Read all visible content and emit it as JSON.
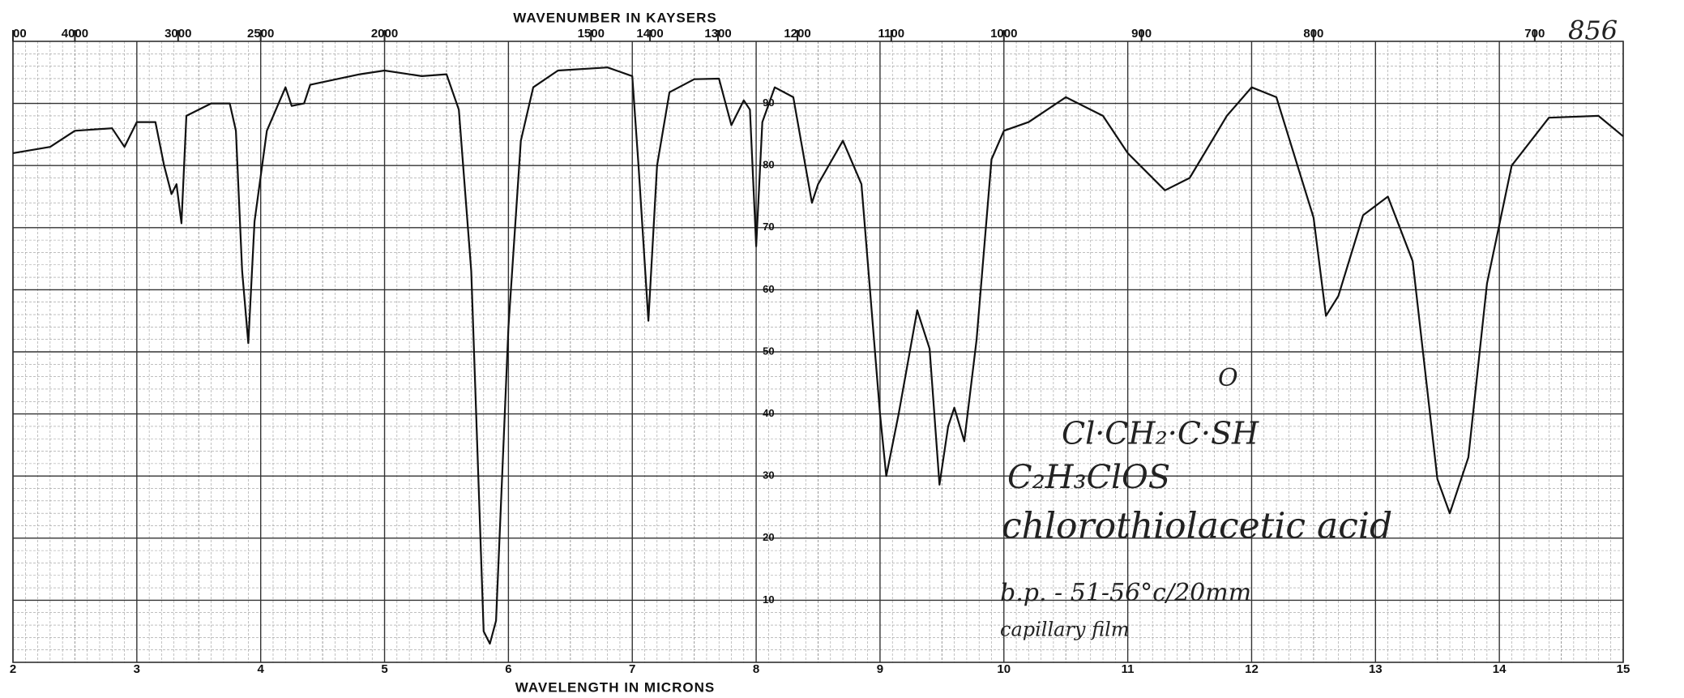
{
  "chart_data": {
    "type": "line",
    "x_label": "WAVELENGTH IN MICRONS",
    "top_axis": {
      "label": "WAVENUMBER IN KAYSERS",
      "ticks": [
        {
          "value": 5000,
          "label": "00"
        },
        4000,
        3000,
        2500,
        2000,
        1500,
        1400,
        1300,
        1200,
        1100,
        1000,
        900,
        800,
        700
      ]
    },
    "xlim": [
      2,
      15
    ],
    "xticks": [
      2,
      3,
      4,
      5,
      6,
      7,
      8,
      9,
      10,
      11,
      12,
      13,
      14,
      15
    ],
    "ylim": [
      0,
      100
    ],
    "yticks": [
      10,
      20,
      30,
      40,
      50,
      60,
      70,
      80,
      90
    ],
    "grid": true,
    "color": "#111111",
    "x": [
      2.0,
      2.3,
      2.5,
      2.8,
      2.9,
      3.0,
      3.15,
      3.22,
      3.28,
      3.32,
      3.36,
      3.4,
      3.6,
      3.75,
      3.8,
      3.85,
      3.9,
      3.95,
      4.05,
      4.2,
      4.25,
      4.35,
      4.4,
      4.8,
      5.0,
      5.3,
      5.5,
      5.6,
      5.7,
      5.8,
      5.85,
      5.9,
      6.0,
      6.1,
      6.2,
      6.4,
      6.8,
      7.0,
      7.05,
      7.13,
      7.2,
      7.3,
      7.5,
      7.7,
      7.8,
      7.9,
      7.95,
      8.0,
      8.05,
      8.15,
      8.3,
      8.45,
      8.5,
      8.7,
      8.85,
      9.0,
      9.05,
      9.15,
      9.3,
      9.4,
      9.48,
      9.55,
      9.6,
      9.68,
      9.78,
      9.9,
      10.0,
      10.2,
      10.5,
      10.8,
      11.0,
      11.3,
      11.5,
      11.8,
      12.0,
      12.2,
      12.5,
      12.6,
      12.7,
      12.9,
      13.1,
      13.3,
      13.5,
      13.6,
      13.75,
      13.9,
      14.1,
      14.4,
      14.8,
      15.0
    ],
    "values": [
      82,
      83,
      85.6,
      86,
      83,
      87,
      87,
      80,
      75.4,
      77,
      70.7,
      88,
      90,
      90,
      85.6,
      63,
      51.4,
      71,
      85.6,
      92.6,
      89.6,
      90,
      93,
      94.7,
      95.3,
      94.4,
      94.7,
      89,
      63,
      5,
      3,
      6.7,
      54,
      84,
      92.6,
      95.3,
      95.8,
      94.4,
      80,
      55,
      80,
      91.8,
      93.9,
      94,
      86.5,
      90.5,
      89,
      67,
      87,
      92.6,
      91,
      74,
      77,
      84,
      77,
      40,
      30,
      40,
      56.7,
      50.5,
      28.6,
      38,
      41,
      35.6,
      52,
      81,
      85.6,
      87,
      91,
      88,
      82,
      76,
      78,
      88,
      92.6,
      91,
      71.6,
      55.8,
      59,
      72,
      75,
      64.6,
      29.5,
      24,
      33,
      61,
      80,
      87.7,
      88,
      84.7
    ],
    "annotations": [
      "856",
      "O",
      "Cl·CH₂·C·SH",
      "C₂H₃ClOS",
      "chlorothiolacetic acid",
      "b.p. - 51-56°c/20mm",
      "capillary film"
    ]
  }
}
